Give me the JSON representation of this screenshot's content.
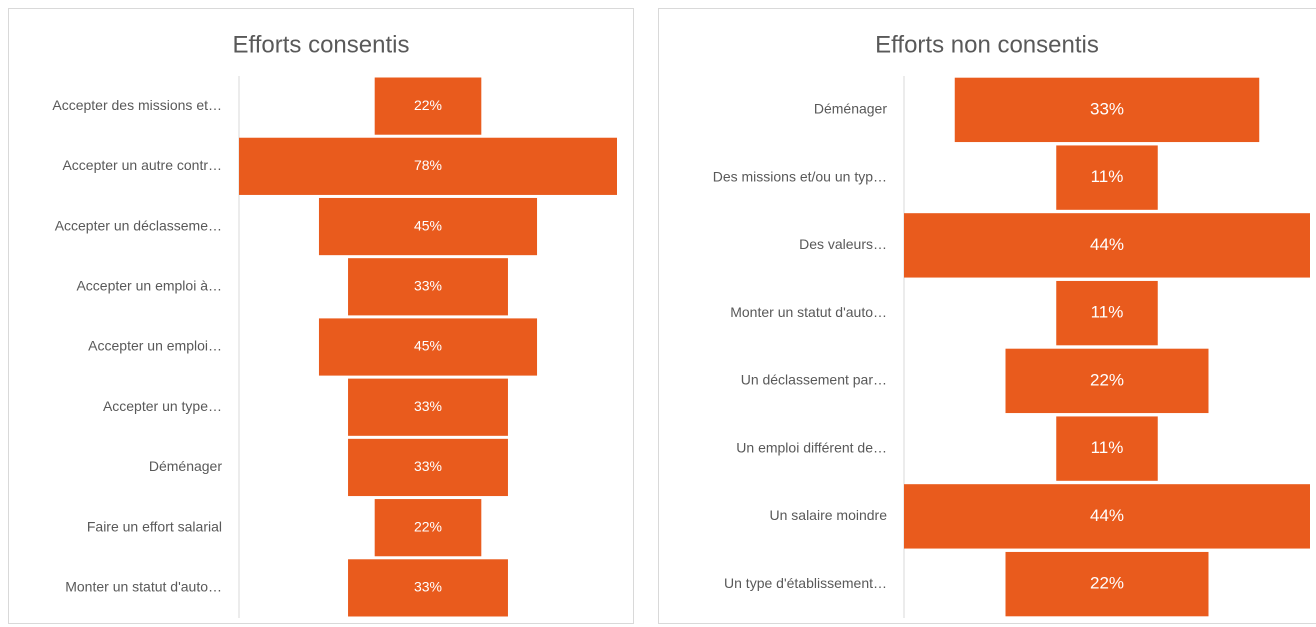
{
  "chart_data": [
    {
      "type": "funnel",
      "title": "Efforts consentis",
      "color": "#e95b1d",
      "categories": [
        "Accepter des missions et…",
        "Accepter un autre contr…",
        "Accepter un déclasseme…",
        "Accepter un emploi à…",
        "Accepter un emploi…",
        "Accepter un type…",
        "Déménager",
        "Faire un effort salarial",
        "Monter un statut d'auto…"
      ],
      "values": [
        22,
        78,
        45,
        33,
        45,
        33,
        33,
        22,
        33
      ],
      "value_labels": [
        "22%",
        "78%",
        "45%",
        "33%",
        "45%",
        "33%",
        "33%",
        "22%",
        "33%"
      ]
    },
    {
      "type": "funnel",
      "title": "Efforts non consentis",
      "color": "#e95b1d",
      "categories": [
        "Déménager",
        "Des missions et/ou un typ…",
        "Des valeurs…",
        "Monter un statut d'auto…",
        "Un déclassement par…",
        "Un emploi différent de…",
        "Un salaire moindre",
        "Un type d'établissement…"
      ],
      "values": [
        33,
        11,
        44,
        11,
        22,
        11,
        44,
        22
      ],
      "value_labels": [
        "33%",
        "11%",
        "44%",
        "11%",
        "22%",
        "11%",
        "44%",
        "22%"
      ]
    }
  ]
}
